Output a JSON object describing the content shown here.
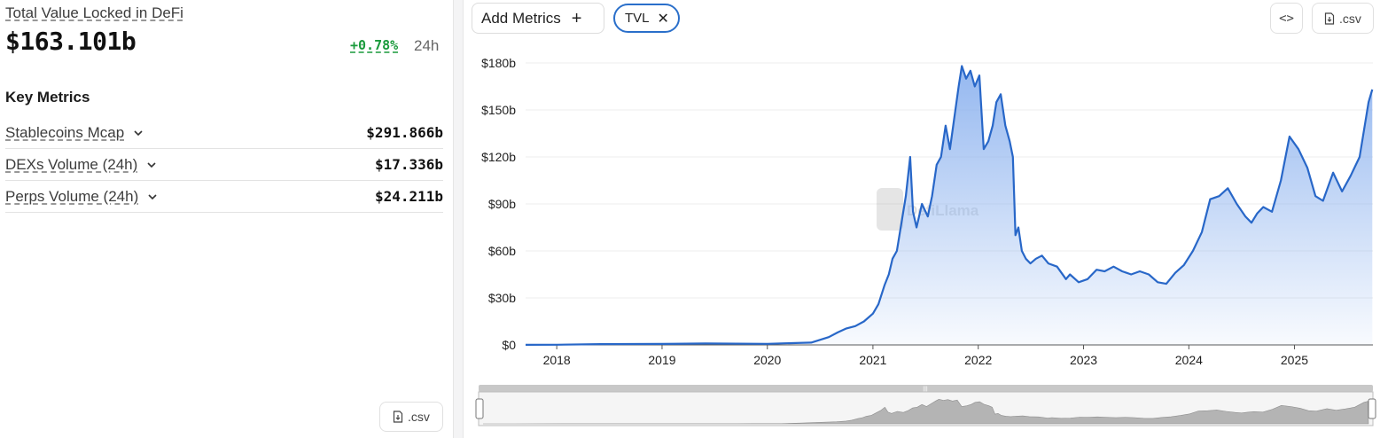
{
  "summary": {
    "title": "Total Value Locked in DeFi",
    "value": "$163.101b",
    "change": "+0.78%",
    "period": "24h"
  },
  "key_metrics": {
    "heading": "Key Metrics",
    "items": [
      {
        "label": "Stablecoins Mcap",
        "value": "$291.866b"
      },
      {
        "label": "DEXs Volume (24h)",
        "value": "$17.336b"
      },
      {
        "label": "Perps Volume (24h)",
        "value": "$24.211b"
      }
    ],
    "csv_label": ".csv"
  },
  "toolbar": {
    "add_metrics_label": "Add Metrics",
    "add_icon": "plus-icon",
    "active_metric": "TVL",
    "remove_icon": "close-icon",
    "embed_label": "<>",
    "csv_label": ".csv"
  },
  "colors": {
    "line": "#2867c8",
    "area_top": "#8fb4ef",
    "positive": "#1a9a3c"
  },
  "chart_data": {
    "type": "area",
    "title": "",
    "xlabel": "",
    "ylabel": "",
    "watermark": "DefiLlama",
    "x_ticks": [
      "2018",
      "2019",
      "2020",
      "2021",
      "2022",
      "2023",
      "2024",
      "2025"
    ],
    "y_ticks": [
      "$0",
      "$30b",
      "$60b",
      "$90b",
      "$120b",
      "$150b",
      "$180b"
    ],
    "ylim": [
      0,
      180
    ],
    "y_unit": "b USD",
    "grid": true,
    "legend": "none",
    "series": [
      {
        "x": [
          "2017-09-15",
          "2018-01-01",
          "2018-06-01",
          "2019-01-01",
          "2019-06-01",
          "2020-01-01",
          "2020-03-01",
          "2020-06-01",
          "2020-08-01",
          "2020-09-01",
          "2020-10-01",
          "2020-11-01",
          "2020-12-01",
          "2021-01-01",
          "2021-01-20",
          "2021-02-10",
          "2021-02-25",
          "2021-03-10",
          "2021-03-25",
          "2021-04-10",
          "2021-04-25",
          "2021-05-10",
          "2021-05-20",
          "2021-06-01",
          "2021-06-20",
          "2021-07-10",
          "2021-07-25",
          "2021-08-10",
          "2021-08-25",
          "2021-09-10",
          "2021-09-25",
          "2021-10-10",
          "2021-10-25",
          "2021-11-05",
          "2021-11-20",
          "2021-12-05",
          "2021-12-20",
          "2022-01-05",
          "2022-01-20",
          "2022-02-05",
          "2022-02-20",
          "2022-03-05",
          "2022-03-20",
          "2022-04-05",
          "2022-04-20",
          "2022-05-01",
          "2022-05-10",
          "2022-05-20",
          "2022-06-01",
          "2022-06-15",
          "2022-07-01",
          "2022-07-20",
          "2022-08-10",
          "2022-09-01",
          "2022-10-01",
          "2022-11-01",
          "2022-11-15",
          "2022-12-15",
          "2023-01-15",
          "2023-02-15",
          "2023-03-15",
          "2023-04-15",
          "2023-05-15",
          "2023-06-15",
          "2023-07-15",
          "2023-08-15",
          "2023-09-15",
          "2023-10-15",
          "2023-11-15",
          "2023-12-15",
          "2024-01-15",
          "2024-02-15",
          "2024-03-15",
          "2024-04-15",
          "2024-05-15",
          "2024-06-15",
          "2024-07-15",
          "2024-08-05",
          "2024-08-25",
          "2024-09-15",
          "2024-10-15",
          "2024-11-15",
          "2024-12-15",
          "2025-01-15",
          "2025-02-15",
          "2025-03-15",
          "2025-04-10",
          "2025-05-15",
          "2025-06-15",
          "2025-07-15",
          "2025-08-15",
          "2025-09-15",
          "2025-09-28"
        ],
        "y": [
          0.05,
          0.1,
          0.5,
          0.6,
          0.9,
          0.7,
          1.0,
          1.5,
          5.0,
          8.0,
          10.5,
          12.0,
          15.0,
          20.0,
          26.0,
          38.0,
          45.0,
          55.0,
          60.0,
          78.0,
          95.0,
          120.0,
          85.0,
          75.0,
          90.0,
          82.0,
          95.0,
          115.0,
          120.0,
          140.0,
          125.0,
          145.0,
          165.0,
          178.0,
          170.0,
          175.0,
          165.0,
          172.0,
          125.0,
          130.0,
          140.0,
          155.0,
          160.0,
          140.0,
          130.0,
          120.0,
          70.0,
          75.0,
          60.0,
          55.0,
          52.0,
          55.0,
          57.0,
          52.0,
          50.0,
          42.0,
          45.0,
          40.0,
          42.0,
          48.0,
          47.0,
          50.0,
          47.0,
          45.0,
          47.0,
          45.0,
          40.0,
          39.0,
          46.0,
          51.0,
          60.0,
          72.0,
          93.0,
          95.0,
          100.0,
          90.0,
          82.0,
          78.0,
          84.0,
          88.0,
          85.0,
          105.0,
          133.0,
          125.0,
          113.0,
          95.0,
          92.0,
          110.0,
          98.0,
          108.0,
          120.0,
          155.0,
          163.1
        ]
      }
    ]
  }
}
